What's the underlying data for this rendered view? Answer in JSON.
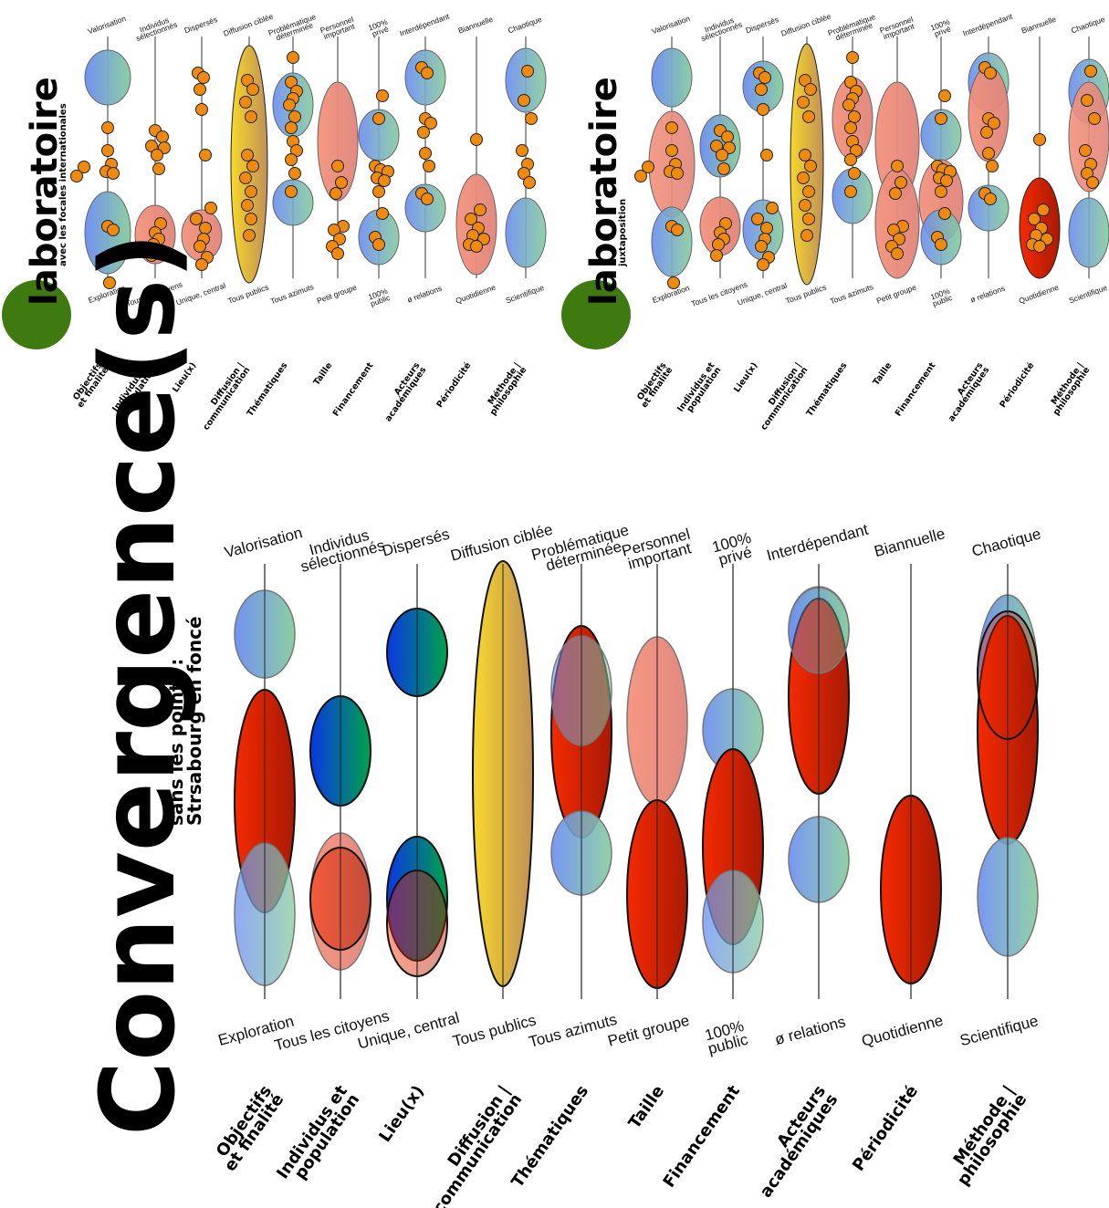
{
  "categories": [
    "Objectifs\net finalité",
    "Individus et\npopulation",
    "Lieu(x)",
    "Diffusion |\ncommunication",
    "Thématiques",
    "Taille",
    "Financement",
    "Acteurs\nacadémiques",
    "Périodicité",
    "Méthode |\nphilosophie"
  ],
  "top_labels": [
    "Valorisation",
    "Individus\nsélectionnés",
    "Dispersés",
    "Diffusion ciblée",
    "Problématique\ndéterminée",
    "Personnel\nimportant",
    "100%\nprivé",
    "Interdépendant",
    "Biannuelle",
    "Chaotique"
  ],
  "bottom_labels": [
    "Exploration",
    "Tous les citoyens",
    "Unique, central",
    "Tous publics",
    "Tous azimuts",
    "Petit groupe",
    "100%\npublic",
    "ø relations",
    "Quotidienne",
    "Scientifique"
  ],
  "panel_left": {
    "title": "laboratoire",
    "subtitle": "avec les focales internationales"
  },
  "panel_right": {
    "title": "laboratoire",
    "subtitle": "juxtaposition"
  },
  "panel_main": {
    "title": "Convergence(s)",
    "subtitle_1": "sans les points :",
    "subtitle_2": "Strsabourg en foncé"
  },
  "legend_values": {
    "blue_green": [
      "#6f8ff0",
      "#7fc7a0"
    ],
    "salmon": "#ee8a78",
    "red": [
      "#f02000",
      "#a81800"
    ],
    "yellow": [
      "#f5d84a",
      "#c6a062"
    ],
    "dark_blue_green": [
      "#0030e0",
      "#00a040"
    ],
    "orange_point": "#ef8a10",
    "green_disc": "#3e7a10"
  }
}
